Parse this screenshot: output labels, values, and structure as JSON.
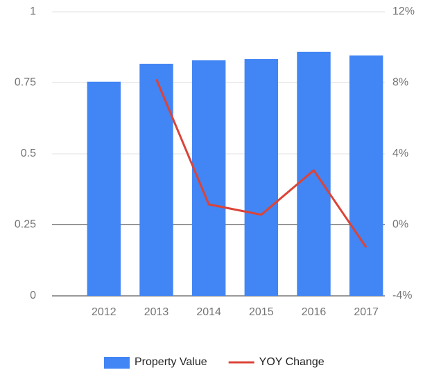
{
  "chart_data": {
    "type": "bar-line",
    "categories": [
      "2012",
      "2013",
      "2014",
      "2015",
      "2016",
      "2017"
    ],
    "series": [
      {
        "name": "Property Value",
        "color": "#4285f4",
        "type": "bar",
        "values": [
          0.754,
          0.817,
          0.829,
          0.834,
          0.859,
          0.846
        ]
      },
      {
        "name": "YOY Change",
        "color": "#db4437",
        "type": "line",
        "axis": "y2",
        "values": [
          null,
          8.2,
          1.15,
          0.57,
          3.07,
          -1.27
        ]
      }
    ],
    "ylim": [
      0,
      1
    ],
    "yticks": [
      0,
      0.25,
      0.5,
      0.75,
      1
    ],
    "y2lim": [
      -4,
      12
    ],
    "y2ticks": [
      {
        "value": -4,
        "label": "-4%"
      },
      {
        "value": 0,
        "label": "0%"
      },
      {
        "value": 4,
        "label": "4%"
      },
      {
        "value": 8,
        "label": "8%"
      },
      {
        "value": 12,
        "label": "12%"
      }
    ],
    "grid": true,
    "legend": "bottom"
  }
}
